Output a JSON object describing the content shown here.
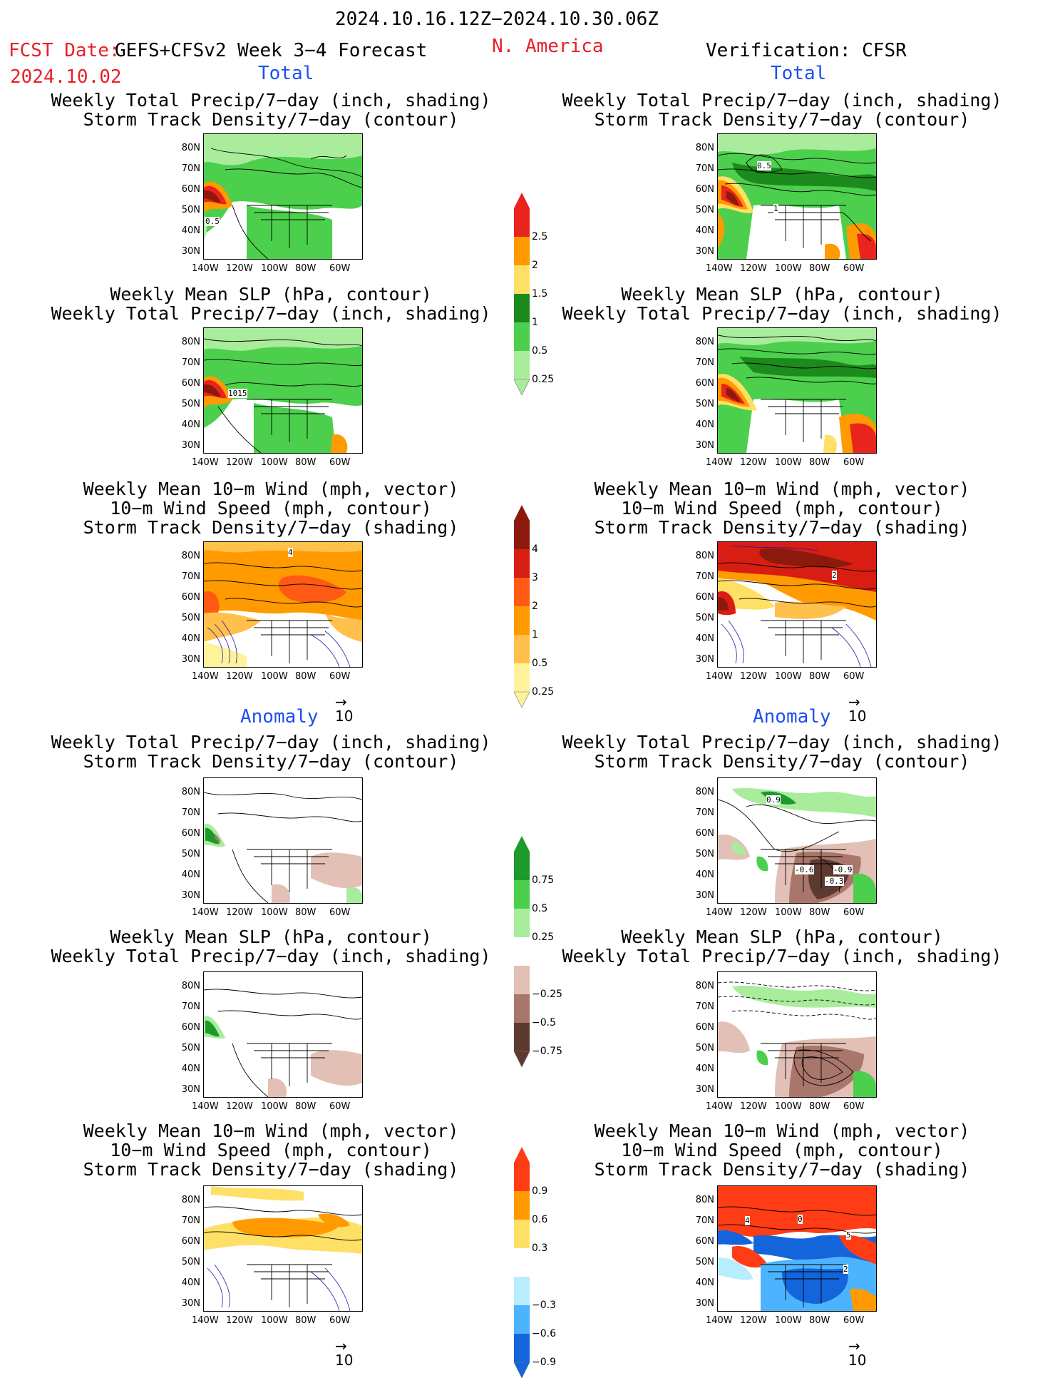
{
  "header": {
    "date_range": "2024.10.16.12Z−2024.10.30.06Z",
    "fcst_date_label": "FCST Date:",
    "model_label": "GEFS+CFSv2 Week 3−4 Forecast",
    "fcst_date": "2024.10.02",
    "region": "N. America",
    "verification": "Verification: CFSR",
    "total_left": "Total",
    "total_right": "Total",
    "anomaly_left": "Anomaly",
    "anomaly_right": "Anomaly"
  },
  "panel_titles": {
    "precip_storm": "Weekly Total Precip/7−day (inch, shading)\nStorm Track Density/7−day (contour)",
    "slp_precip": "Weekly Mean SLP (hPa, contour)\nWeekly Total Precip/7−day (inch, shading)",
    "wind_storm": "Weekly Mean 10−m Wind (mph, vector)\n10−m Wind Speed (mph, contour)\nStorm Track Density/7−day (shading)"
  },
  "axes": {
    "lat": [
      "80N",
      "70N",
      "60N",
      "50N",
      "40N",
      "30N"
    ],
    "lon": [
      "140W",
      "120W",
      "100W",
      "80W",
      "60W"
    ]
  },
  "vector_ref": "10",
  "map_labels": {
    "p1": "0.5",
    "p2": "1015",
    "p3": "4",
    "q1a": "0.5",
    "q1b": "1",
    "q3": "2",
    "q4a": "0.9",
    "q4b": "-0.6",
    "q4c": "-0.9",
    "q4d": "-0.3",
    "q6a": "4",
    "q6b": "0",
    "q6c": "5",
    "q6d": "2"
  },
  "scales": {
    "precip_total": {
      "labels": [
        "2.5",
        "2",
        "1.5",
        "1",
        "0.5",
        "0.25"
      ],
      "colors": [
        "#e8241c",
        "#ff9a00",
        "#ffe066",
        "#1c8a1c",
        "#4ccf4c",
        "#a8ec9c"
      ]
    },
    "storm_total": {
      "labels": [
        "4",
        "3",
        "2",
        "1",
        "0.5",
        "0.25"
      ],
      "colors": [
        "#8c1a0c",
        "#d81e12",
        "#ff5a14",
        "#ff9a00",
        "#ffc04c",
        "#fff29a"
      ]
    },
    "precip_anom": {
      "labels": [
        "0.75",
        "0.5",
        "0.25",
        "−0.25",
        "−0.5",
        "−0.75"
      ],
      "colors": [
        "#1c9a2c",
        "#4ccf4c",
        "#a8ec9c",
        "#ffffff",
        "#e2c0b6",
        "#a8766a",
        "#5c3a30"
      ]
    },
    "storm_anom": {
      "labels": [
        "0.9",
        "0.6",
        "0.3",
        "−0.3",
        "−0.6",
        "−0.9"
      ],
      "colors": [
        "#ff3c14",
        "#ff9a00",
        "#ffe066",
        "#ffffff",
        "#b8ecff",
        "#4cb4ff",
        "#1464dc"
      ]
    }
  }
}
